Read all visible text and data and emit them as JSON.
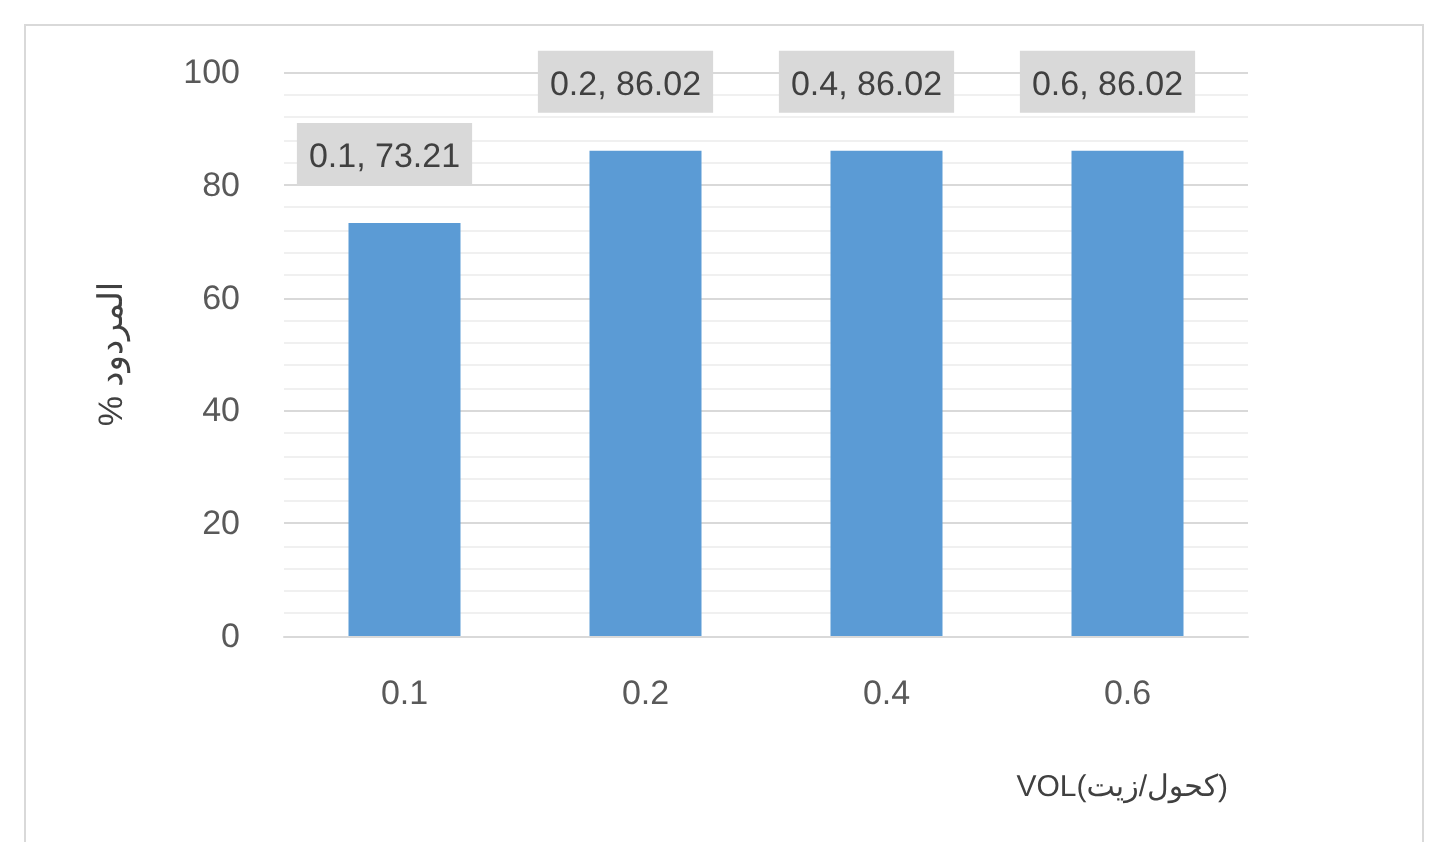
{
  "chart_data": {
    "type": "bar",
    "xlabel": "VOL(كحول/زيت)",
    "ylabel": "% المردود",
    "categories": [
      "0.1",
      "0.2",
      "0.4",
      "0.6"
    ],
    "values": [
      73.21,
      86.02,
      86.02,
      86.02
    ],
    "value_labels": [
      "0.1, 73.21",
      "0.2, 86.02",
      "0.4, 86.02",
      "0.6, 86.02"
    ],
    "color": "#5b9bd5",
    "ylim": [
      0,
      100
    ],
    "yticks": [
      0,
      20,
      40,
      60,
      80,
      100
    ],
    "grid": "y"
  }
}
